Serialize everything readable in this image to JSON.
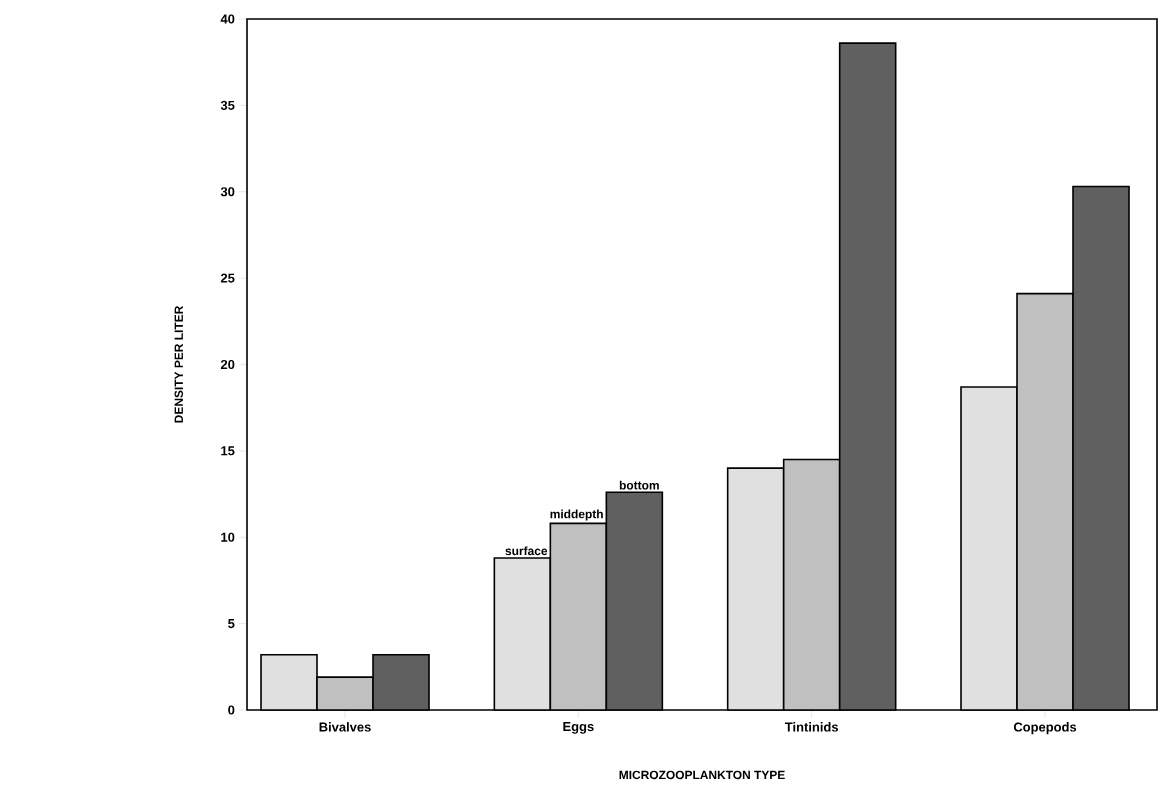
{
  "chart_data": {
    "type": "bar",
    "xlabel": "MICROZOOPLANKTON TYPE",
    "ylabel": "DENSITY PER LITER",
    "categories": [
      "Bivalves",
      "Eggs",
      "Tintinids",
      "Copepods"
    ],
    "series": [
      {
        "name": "surface",
        "color": "#e0e0e0",
        "values": [
          3.2,
          8.8,
          14.0,
          18.7
        ]
      },
      {
        "name": "middepth",
        "color": "#c0c0c0",
        "values": [
          1.9,
          10.8,
          14.5,
          24.1
        ]
      },
      {
        "name": "bottom",
        "color": "#606060",
        "values": [
          3.2,
          12.6,
          38.6,
          30.3
        ]
      }
    ],
    "ylim": [
      0,
      40
    ],
    "yticks": [
      0,
      5,
      10,
      15,
      20,
      25,
      30,
      35,
      40
    ]
  }
}
